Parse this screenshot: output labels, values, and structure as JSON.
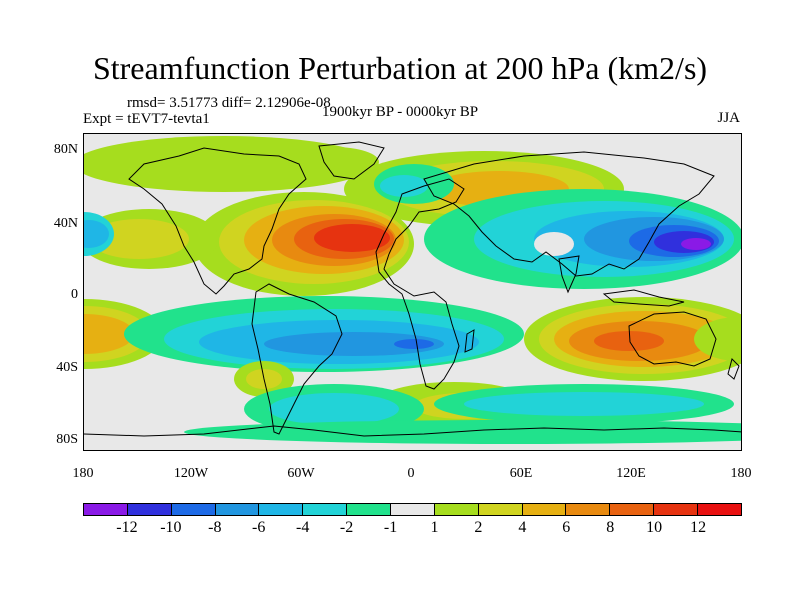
{
  "title": "Streamfunction Perturbation at 200 hPa (km2/s)",
  "stats": "rmsd= 3.51773 diff= 2.12906e-08",
  "experiment": "Expt = tEVT7-tevta1",
  "period": "1900kyr BP - 0000kyr BP",
  "season": "JJA",
  "y_ticks": [
    "80N",
    "40N",
    "0",
    "40S",
    "80S"
  ],
  "x_ticks": [
    "180",
    "120W",
    "60W",
    "0",
    "60E",
    "120E",
    "180"
  ],
  "colorbar": {
    "colors": [
      "#8a1ae6",
      "#3030dd",
      "#1d6ae6",
      "#2196e0",
      "#1fb6e6",
      "#22d3d7",
      "#21e28c",
      "#e8e8e8",
      "#a6dd1e",
      "#d0d420",
      "#e6b012",
      "#e88a10",
      "#e86210",
      "#e63310",
      "#e81010"
    ],
    "labels": [
      "-12",
      "-10",
      "-8",
      "-6",
      "-4",
      "-2",
      "-1",
      "1",
      "2",
      "4",
      "6",
      "8",
      "10",
      "12"
    ]
  },
  "fill_colors": {
    "background": "#e8e8e8",
    "pos_weak": "#a6dd1e",
    "pos_light": "#d0d420",
    "pos_mid": "#e6b012",
    "pos_strong": "#e88a10",
    "pos_high": "#e86210",
    "pos_max": "#e63310",
    "neg_weak": "#21e28c",
    "neg_light": "#22d3d7",
    "neg_mid": "#1fb6e6",
    "neg_strong": "#2196e0",
    "neg_high": "#1d6ae6",
    "neg_max": "#3030dd",
    "neg_extreme": "#8a1ae6"
  }
}
